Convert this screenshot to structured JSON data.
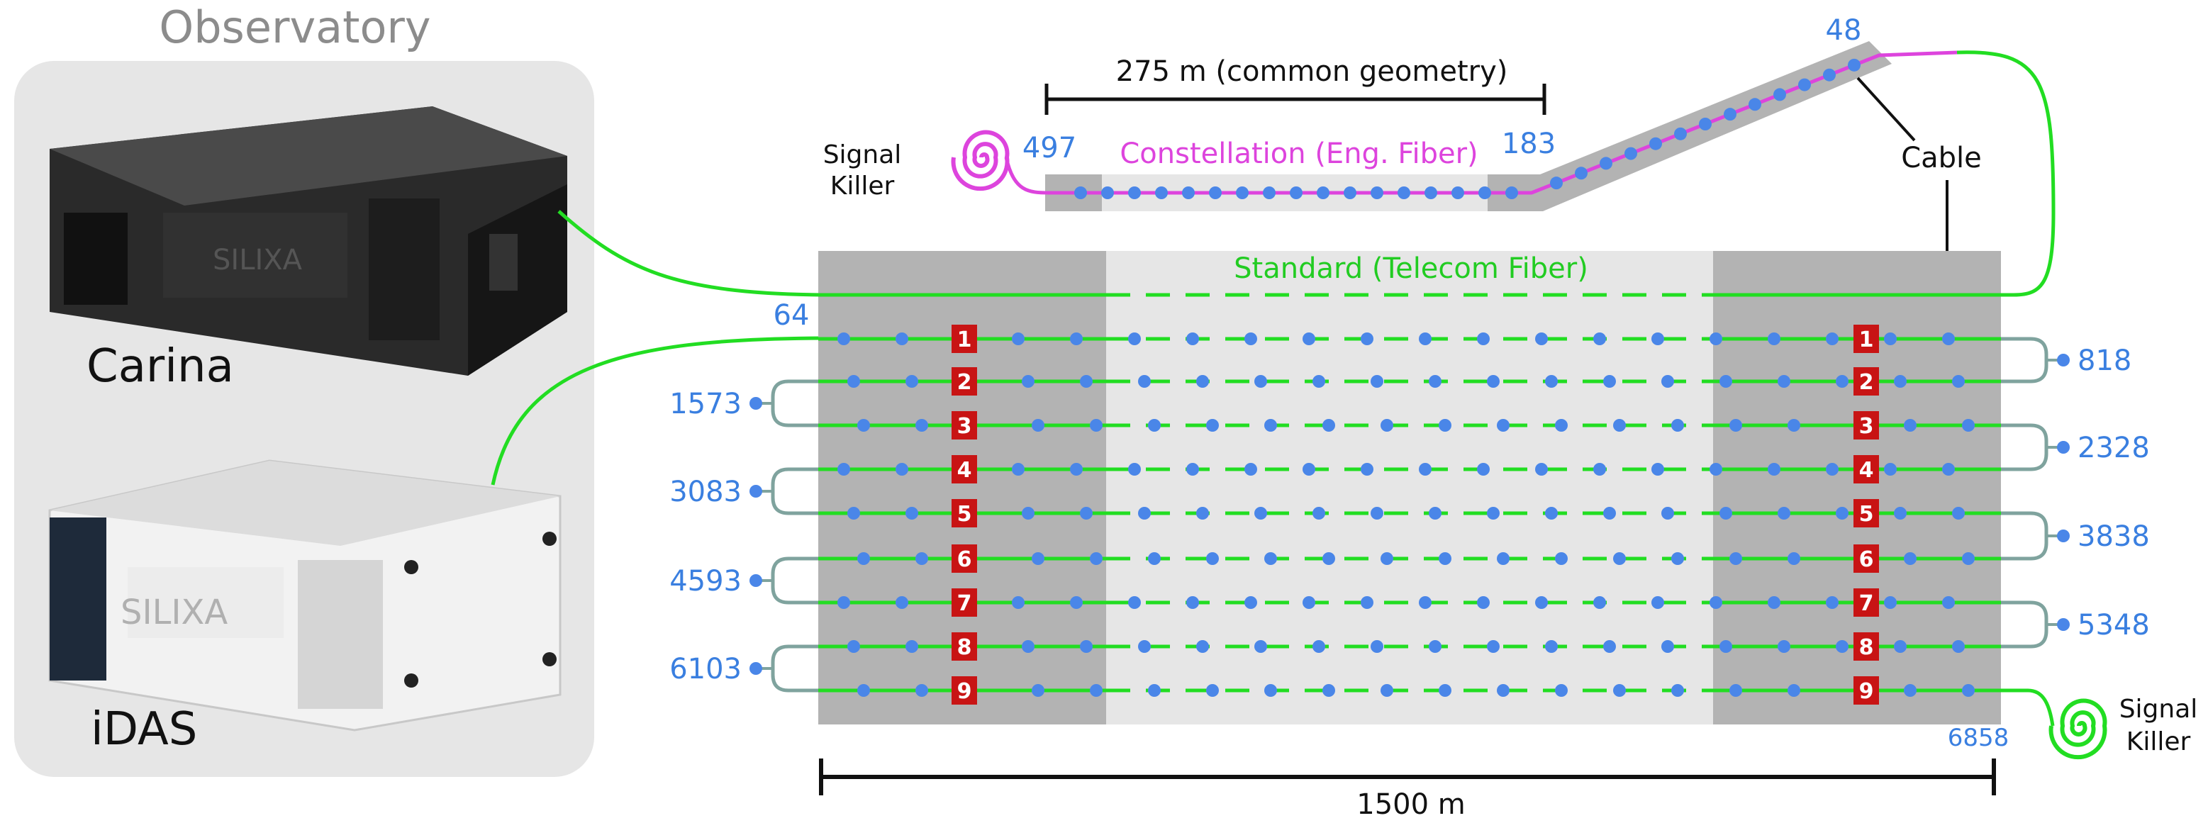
{
  "observatory": {
    "title": "Observatory",
    "devices": [
      {
        "name": "Carina",
        "brand": "SILIXA",
        "icon": "carina-interrogator-unit"
      },
      {
        "name": "iDAS",
        "brand": "SILIXA",
        "icon": "idas-interrogator-unit"
      }
    ]
  },
  "labels": {
    "signal_killer_left": [
      "Signal",
      "Killer"
    ],
    "signal_killer_right": [
      "Signal",
      "Killer"
    ],
    "cable": "Cable",
    "standard_fiber": "Standard (Telecom Fiber)",
    "constellation_fiber": "Constellation (Eng. Fiber)",
    "scale_top": "275 m (common geometry)",
    "scale_bottom": "1500 m"
  },
  "channels": {
    "c497": "497",
    "c183": "183",
    "c48": "48",
    "c64": "64",
    "c6858": "6858",
    "left_turns": [
      "1573",
      "3083",
      "4593",
      "6103"
    ],
    "right_turns": [
      "818",
      "2328",
      "3838",
      "5348"
    ]
  },
  "line_numbers": [
    "1",
    "2",
    "3",
    "4",
    "5",
    "6",
    "7",
    "8",
    "9"
  ],
  "colors": {
    "standard_fiber": "#22dd22",
    "constellation_fiber": "#dd44dd",
    "sensor_dot": "#4a86e8",
    "channel_text": "#3a7fe0",
    "line_badge": "#c81414",
    "zone_dark": "#b3b3b3",
    "zone_light": "#e6e6e6",
    "turn_loop": "#7fa39e",
    "observatory_box": "#e6e6e6"
  }
}
